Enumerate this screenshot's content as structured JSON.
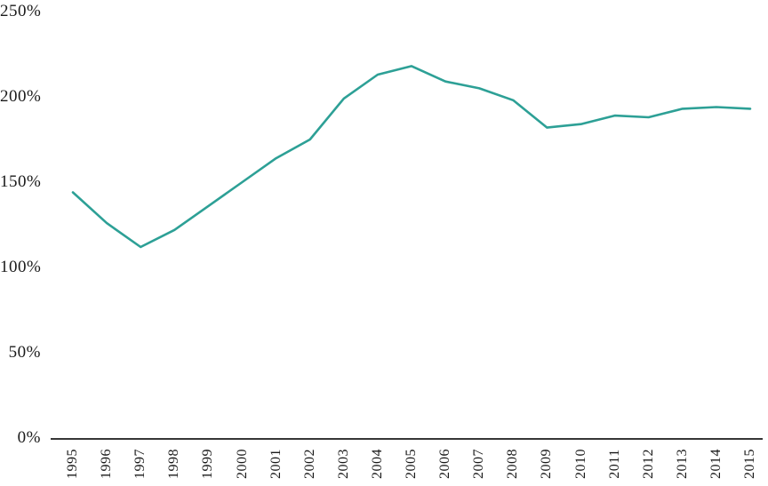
{
  "chart_data": {
    "type": "line",
    "title": "",
    "xlabel": "",
    "ylabel": "",
    "unit": "%",
    "categories": [
      "1995",
      "1996",
      "1997",
      "1998",
      "1999",
      "2000",
      "2001",
      "2002",
      "2003",
      "2004",
      "2005",
      "2006",
      "2007",
      "2008",
      "2009",
      "2010",
      "2011",
      "2012",
      "2013",
      "2014",
      "2015"
    ],
    "values": [
      144,
      126,
      112,
      122,
      136,
      150,
      164,
      175,
      199,
      213,
      218,
      209,
      205,
      198,
      182,
      184,
      189,
      188,
      193,
      194,
      193
    ],
    "yticks": [
      0,
      50,
      100,
      150,
      200,
      250
    ],
    "ytick_labels": [
      "0%",
      "50%",
      "100%",
      "150%",
      "200%",
      "250%"
    ],
    "ylim": [
      0,
      250
    ],
    "grid": false,
    "legend": null,
    "line_color": "#2da096",
    "axis_color": "#1a1a1a",
    "text_color": "#1a1a1a"
  }
}
